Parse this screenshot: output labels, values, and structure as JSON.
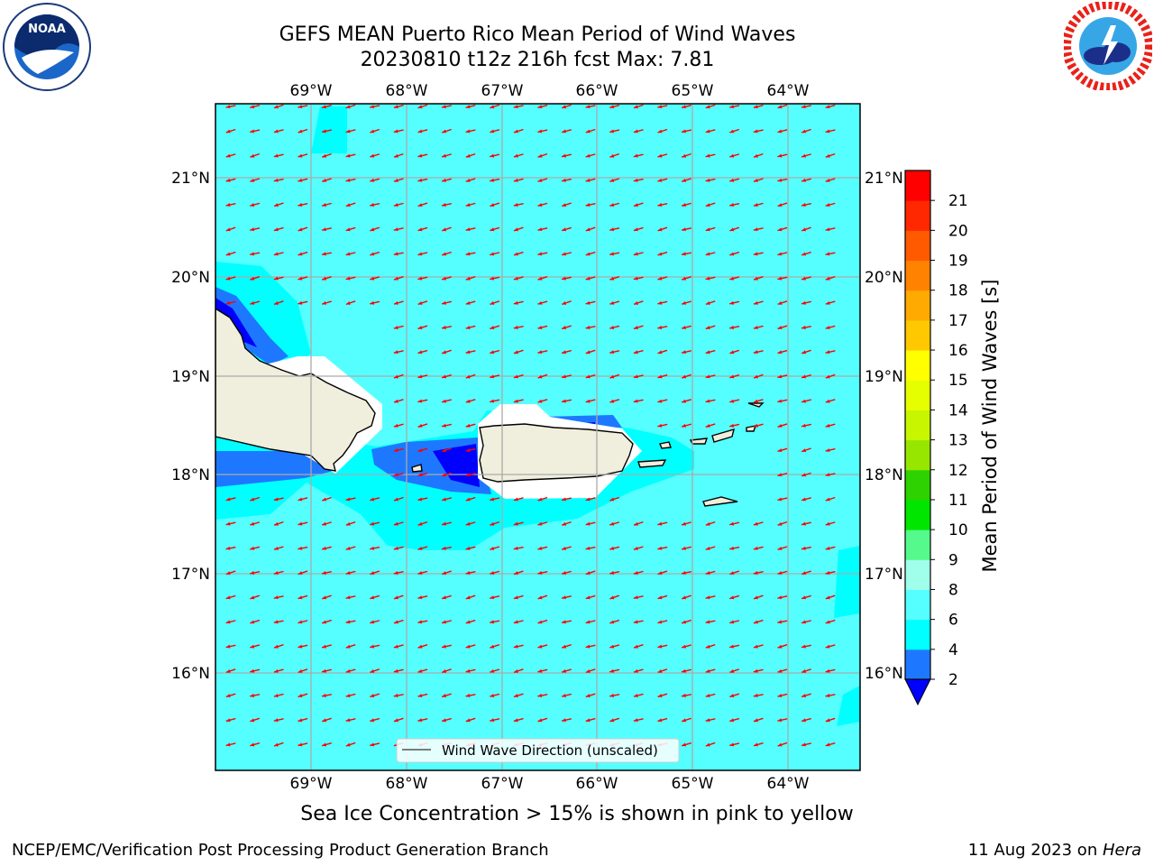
{
  "header": {
    "title_line1": "GEFS MEAN Puerto Rico Mean Period of Wind Waves",
    "title_line2": "20230810 t12z 216h fcst   Max: 7.81"
  },
  "logos": {
    "left": {
      "icon": "noaa-logo-icon",
      "text": "NOAA"
    },
    "right": {
      "icon": "nws-logo-icon"
    }
  },
  "map": {
    "lon_ticks": [
      "69°W",
      "68°W",
      "67°W",
      "66°W",
      "65°W",
      "64°W"
    ],
    "lat_ticks": [
      "21°N",
      "20°N",
      "19°N",
      "18°N",
      "17°N",
      "16°N"
    ],
    "legend_label": "Wind Wave Direction (unscaled)",
    "colors": {
      "ocean": "#55FFFF",
      "land": "#F0EEDC",
      "arrow": "#FF0000"
    }
  },
  "colorbar": {
    "label": "Mean Period of Wind Waves [s]",
    "ticks": [
      "2",
      "4",
      "6",
      "8",
      "9",
      "10",
      "11",
      "12",
      "13",
      "14",
      "15",
      "16",
      "17",
      "18",
      "19",
      "20",
      "21"
    ],
    "colors": [
      "#1E78FF",
      "#00FFFF",
      "#55FFFF",
      "#9FFFEB",
      "#55FA8C",
      "#00E600",
      "#2DD200",
      "#96E600",
      "#C8F500",
      "#E6FF00",
      "#FFFF00",
      "#FFC800",
      "#FFAA00",
      "#FF8200",
      "#FF5A00",
      "#FF2800",
      "#FF0000"
    ],
    "under_color": "#0000FF"
  },
  "footer": {
    "subtitle": "Sea Ice Concentration > 15% is shown in pink to yellow",
    "left": "NCEP/EMC/Verification Post Processing Product Generation Branch",
    "right_prefix": "11 Aug 2023 on ",
    "right_em": "Hera"
  }
}
